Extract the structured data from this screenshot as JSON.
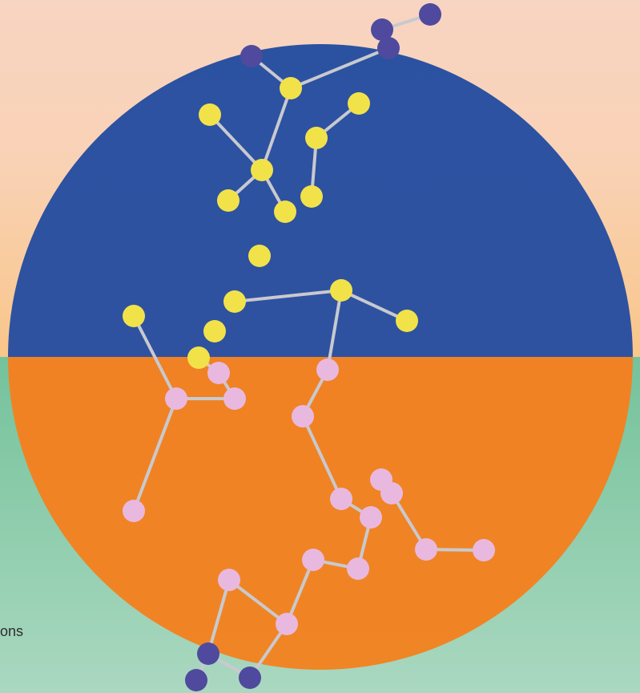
{
  "fragment_text": "ons"
}
